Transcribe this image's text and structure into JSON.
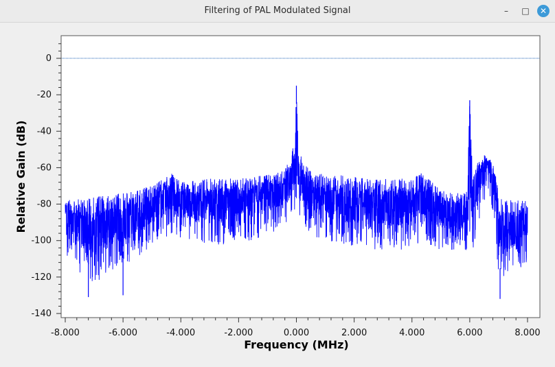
{
  "window": {
    "title": "Filtering of PAL Modulated Signal",
    "minimize_glyph": "–",
    "maximize_glyph": "□",
    "close_glyph": "✕"
  },
  "chart_data": {
    "type": "line",
    "xlabel": "Frequency (MHz)",
    "ylabel": "Relative Gain (dB)",
    "xlim": [
      -8.0,
      8.0
    ],
    "ylim": [
      -140,
      10
    ],
    "x_ticks": [
      "-8.000",
      "-6.000",
      "-4.000",
      "-2.000",
      "0.000",
      "2.000",
      "4.000",
      "6.000",
      "8.000"
    ],
    "y_ticks": [
      "0",
      "-20",
      "-40",
      "-60",
      "-80",
      "-100",
      "-120",
      "-140"
    ],
    "grid": false,
    "reference_line": {
      "y": 0,
      "style": "dotted",
      "color": "#1a5fb4"
    },
    "series": [
      {
        "color": "#0000ff",
        "envelope": {
          "x": [
            -8.0,
            -7.5,
            -7.0,
            -6.5,
            -6.0,
            -5.5,
            -5.0,
            -4.5,
            -4.4,
            -4.0,
            -3.5,
            -3.0,
            -2.5,
            -2.0,
            -1.5,
            -1.0,
            -0.5,
            -0.2,
            -0.05,
            0.0,
            0.05,
            0.2,
            0.5,
            1.0,
            1.5,
            2.0,
            2.5,
            3.0,
            3.5,
            4.0,
            4.4,
            4.5,
            5.0,
            5.5,
            5.9,
            6.0,
            6.1,
            6.3,
            6.5,
            6.7,
            6.9,
            7.0,
            7.5,
            8.0
          ],
          "upper": [
            -78,
            -77,
            -76,
            -75,
            -74,
            -72,
            -70,
            -65,
            -62,
            -68,
            -67,
            -66,
            -66,
            -66,
            -65,
            -64,
            -62,
            -55,
            -44,
            -15,
            -42,
            -56,
            -62,
            -64,
            -64,
            -65,
            -66,
            -66,
            -66,
            -66,
            -62,
            -64,
            -72,
            -74,
            -72,
            -23,
            -64,
            -56,
            -53,
            -55,
            -62,
            -76,
            -78,
            -78
          ],
          "lower": [
            -110,
            -118,
            -125,
            -116,
            -116,
            -110,
            -102,
            -98,
            -96,
            -100,
            -100,
            -104,
            -102,
            -100,
            -100,
            -96,
            -96,
            -90,
            -85,
            -80,
            -85,
            -90,
            -98,
            -100,
            -102,
            -104,
            -104,
            -106,
            -106,
            -104,
            -100,
            -102,
            -106,
            -106,
            -106,
            -102,
            -106,
            -90,
            -78,
            -78,
            -92,
            -126,
            -118,
            -112
          ]
        },
        "spikes": [
          {
            "x": -7.2,
            "y": -131
          },
          {
            "x": -6.0,
            "y": -130
          },
          {
            "x": 7.05,
            "y": -132
          },
          {
            "x": 0.0,
            "y": -15
          },
          {
            "x": 6.0,
            "y": -23
          }
        ]
      }
    ]
  }
}
